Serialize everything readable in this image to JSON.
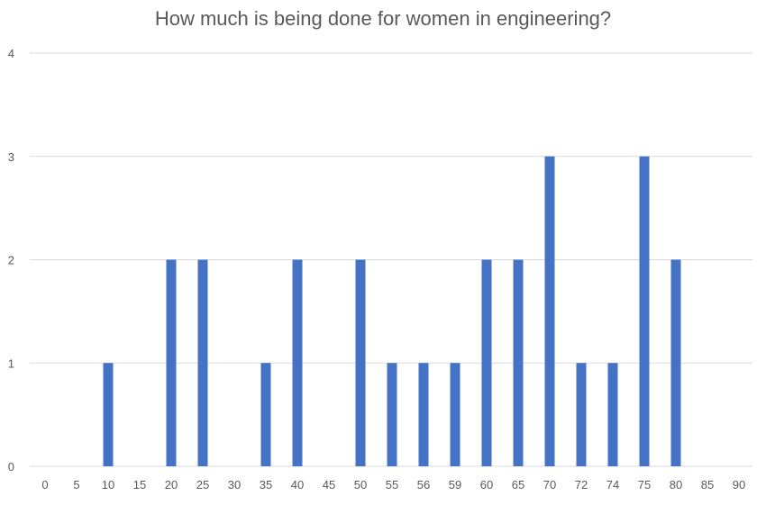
{
  "chart_data": {
    "type": "bar",
    "title": "How much is being done for women in engineering?",
    "xlabel": "",
    "ylabel": "",
    "categories": [
      "0",
      "5",
      "10",
      "15",
      "20",
      "25",
      "30",
      "35",
      "40",
      "45",
      "50",
      "55",
      "56",
      "59",
      "60",
      "65",
      "70",
      "72",
      "74",
      "75",
      "80",
      "85",
      "90"
    ],
    "values": [
      0,
      0,
      1,
      0,
      2,
      2,
      0,
      1,
      2,
      0,
      2,
      1,
      1,
      1,
      2,
      2,
      3,
      1,
      1,
      3,
      2,
      0,
      0
    ],
    "ylim": [
      0,
      4
    ],
    "yticks": [
      "0",
      "1",
      "2",
      "3",
      "4"
    ],
    "grid": true,
    "colors": {
      "bar": "#4472C4",
      "grid": "#D9D9D9",
      "text": "#595959"
    }
  }
}
